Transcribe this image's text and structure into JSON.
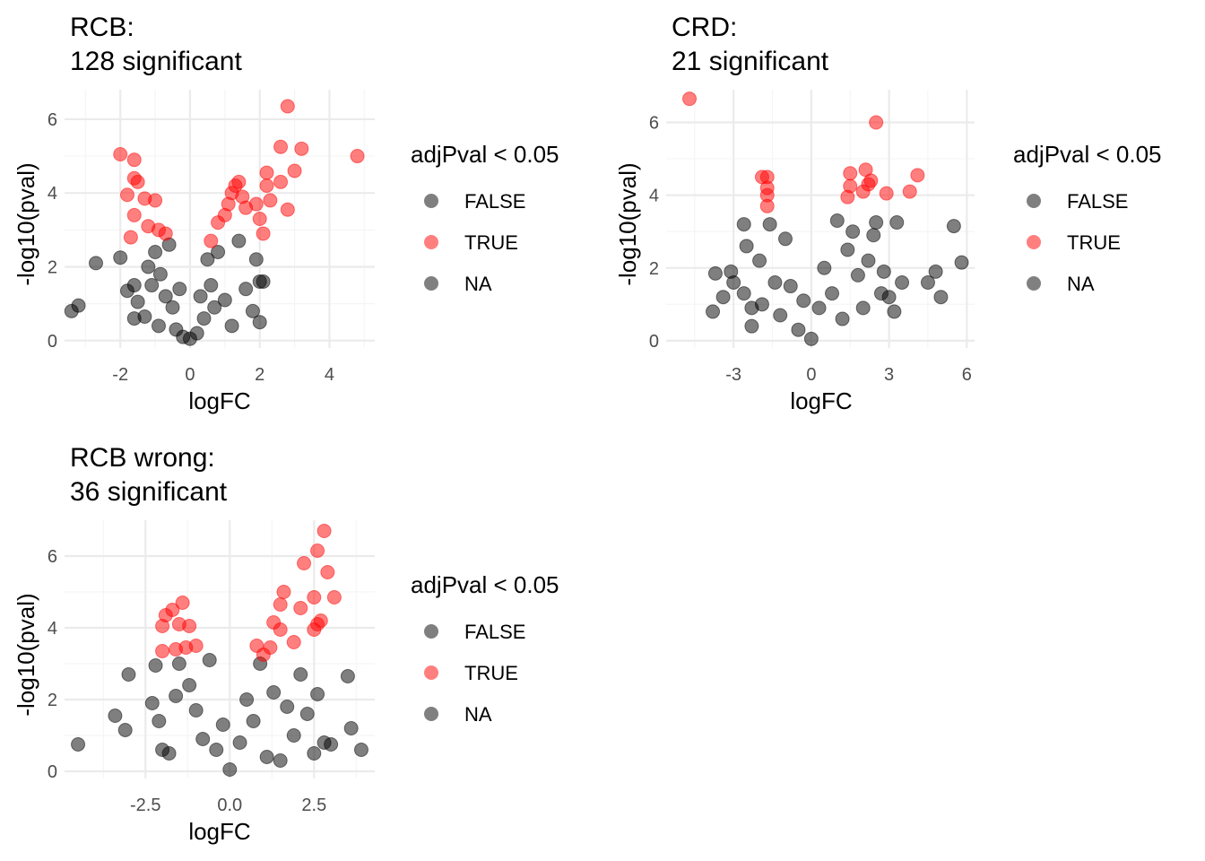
{
  "colors": {
    "false": "#000000",
    "true": "#ff0000",
    "na": "#808080",
    "grid_major": "#ebebeb",
    "grid_minor": "#f5f5f5"
  },
  "chart_data": [
    {
      "type": "scatter",
      "title": [
        "RCB:",
        "128 significant"
      ],
      "xlabel": "logFC",
      "ylabel": "-log10(pval)",
      "xlim": [
        -3.6,
        5.3
      ],
      "ylim": [
        -0.2,
        6.8
      ],
      "xticks": [
        -2,
        0,
        2,
        4
      ],
      "xtick_labels": [
        "-2",
        "0",
        "2",
        "4"
      ],
      "yticks": [
        0,
        2,
        4,
        6
      ],
      "ytick_labels": [
        "0",
        "2",
        "4",
        "6"
      ],
      "legend": {
        "title": "adjPval < 0.05",
        "entries": [
          "FALSE",
          "TRUE",
          "NA"
        ],
        "position": "right"
      },
      "grid": true,
      "series": [
        {
          "name": "FALSE",
          "points": [
            [
              -3.4,
              0.8
            ],
            [
              -3.2,
              0.95
            ],
            [
              -2.7,
              2.1
            ],
            [
              -2.0,
              2.25
            ],
            [
              -1.8,
              1.35
            ],
            [
              -1.6,
              1.5
            ],
            [
              -1.6,
              0.6
            ],
            [
              -1.5,
              1.05
            ],
            [
              -1.3,
              0.65
            ],
            [
              -1.2,
              2.0
            ],
            [
              -1.1,
              1.5
            ],
            [
              -1.0,
              2.4
            ],
            [
              -0.9,
              0.4
            ],
            [
              -0.85,
              1.8
            ],
            [
              -0.7,
              1.2
            ],
            [
              -0.6,
              2.6
            ],
            [
              -0.5,
              0.9
            ],
            [
              -0.4,
              0.3
            ],
            [
              -0.3,
              1.4
            ],
            [
              -0.2,
              0.1
            ],
            [
              0.0,
              0.05
            ],
            [
              0.2,
              0.2
            ],
            [
              0.3,
              1.2
            ],
            [
              0.4,
              0.6
            ],
            [
              0.5,
              2.2
            ],
            [
              0.6,
              1.5
            ],
            [
              0.7,
              0.9
            ],
            [
              0.8,
              2.4
            ],
            [
              1.0,
              1.1
            ],
            [
              1.2,
              0.4
            ],
            [
              1.4,
              2.7
            ],
            [
              1.6,
              1.4
            ],
            [
              1.8,
              0.8
            ],
            [
              1.9,
              2.2
            ],
            [
              2.0,
              1.6
            ],
            [
              2.0,
              0.5
            ],
            [
              2.1,
              1.6
            ]
          ]
        },
        {
          "name": "TRUE",
          "points": [
            [
              -2.0,
              5.05
            ],
            [
              -1.6,
              4.9
            ],
            [
              -1.6,
              4.4
            ],
            [
              -1.5,
              4.3
            ],
            [
              -1.8,
              3.95
            ],
            [
              -1.3,
              3.85
            ],
            [
              -1.0,
              3.8
            ],
            [
              -1.6,
              3.4
            ],
            [
              -1.2,
              3.1
            ],
            [
              -0.9,
              3.0
            ],
            [
              -1.7,
              2.8
            ],
            [
              -0.7,
              2.9
            ],
            [
              0.6,
              2.7
            ],
            [
              0.8,
              3.2
            ],
            [
              1.0,
              3.4
            ],
            [
              1.1,
              3.7
            ],
            [
              1.2,
              4.0
            ],
            [
              1.3,
              4.2
            ],
            [
              1.4,
              4.3
            ],
            [
              1.5,
              3.9
            ],
            [
              1.6,
              3.6
            ],
            [
              1.9,
              3.7
            ],
            [
              2.0,
              3.3
            ],
            [
              2.1,
              2.9
            ],
            [
              2.2,
              4.2
            ],
            [
              2.3,
              3.8
            ],
            [
              2.2,
              4.55
            ],
            [
              2.6,
              4.3
            ],
            [
              2.6,
              5.25
            ],
            [
              2.8,
              3.55
            ],
            [
              3.0,
              4.6
            ],
            [
              3.2,
              5.2
            ],
            [
              2.8,
              6.35
            ],
            [
              4.8,
              5.0
            ]
          ]
        },
        {
          "name": "NA",
          "points": []
        }
      ]
    },
    {
      "type": "scatter",
      "title": [
        "CRD:",
        "21 significant"
      ],
      "xlabel": "logFC",
      "ylabel": "-log10(pval)",
      "xlim": [
        -5.6,
        6.3
      ],
      "ylim": [
        -0.2,
        6.9
      ],
      "xticks": [
        -3,
        0,
        3,
        6
      ],
      "xtick_labels": [
        "-3",
        "0",
        "3",
        "6"
      ],
      "yticks": [
        0,
        2,
        4,
        6
      ],
      "ytick_labels": [
        "0",
        "2",
        "4",
        "6"
      ],
      "legend": {
        "title": "adjPval < 0.05",
        "entries": [
          "FALSE",
          "TRUE",
          "NA"
        ],
        "position": "right"
      },
      "grid": true,
      "series": [
        {
          "name": "FALSE",
          "points": [
            [
              -3.8,
              0.8
            ],
            [
              -3.7,
              1.85
            ],
            [
              -3.4,
              1.2
            ],
            [
              -3.1,
              1.9
            ],
            [
              -3.0,
              1.6
            ],
            [
              -2.6,
              1.3
            ],
            [
              -2.5,
              2.6
            ],
            [
              -2.6,
              3.2
            ],
            [
              -2.3,
              0.9
            ],
            [
              -2.3,
              0.4
            ],
            [
              -2.0,
              2.2
            ],
            [
              -1.9,
              1.0
            ],
            [
              -1.6,
              3.2
            ],
            [
              -1.4,
              1.6
            ],
            [
              -1.2,
              0.7
            ],
            [
              -1.0,
              2.8
            ],
            [
              -0.8,
              1.5
            ],
            [
              -0.5,
              0.3
            ],
            [
              -0.3,
              1.1
            ],
            [
              0.0,
              0.05
            ],
            [
              0.3,
              0.9
            ],
            [
              0.5,
              2.0
            ],
            [
              0.8,
              1.3
            ],
            [
              1.0,
              3.3
            ],
            [
              1.2,
              0.6
            ],
            [
              1.4,
              2.5
            ],
            [
              1.6,
              3.0
            ],
            [
              1.8,
              1.8
            ],
            [
              2.0,
              0.9
            ],
            [
              2.2,
              2.2
            ],
            [
              2.4,
              2.9
            ],
            [
              2.5,
              3.25
            ],
            [
              2.7,
              1.3
            ],
            [
              2.8,
              1.9
            ],
            [
              3.0,
              1.2
            ],
            [
              3.2,
              0.8
            ],
            [
              3.3,
              3.25
            ],
            [
              3.5,
              1.6
            ],
            [
              4.5,
              1.6
            ],
            [
              4.8,
              1.9
            ],
            [
              5.0,
              1.2
            ],
            [
              5.5,
              3.15
            ],
            [
              5.8,
              2.15
            ]
          ]
        },
        {
          "name": "TRUE",
          "points": [
            [
              -4.7,
              6.65
            ],
            [
              -1.9,
              4.5
            ],
            [
              -1.7,
              4.5
            ],
            [
              -1.7,
              4.2
            ],
            [
              -1.7,
              4.0
            ],
            [
              -1.7,
              3.7
            ],
            [
              1.5,
              4.6
            ],
            [
              1.4,
              3.95
            ],
            [
              1.5,
              4.25
            ],
            [
              2.1,
              4.7
            ],
            [
              2.0,
              4.1
            ],
            [
              2.2,
              4.3
            ],
            [
              2.3,
              4.4
            ],
            [
              2.5,
              6.0
            ],
            [
              2.9,
              4.05
            ],
            [
              3.8,
              4.1
            ],
            [
              4.1,
              4.55
            ]
          ]
        },
        {
          "name": "NA",
          "points": []
        }
      ]
    },
    {
      "type": "scatter",
      "title": [
        "RCB wrong:",
        "36 significant"
      ],
      "xlabel": "logFC",
      "ylabel": "-log10(pval)",
      "xlim": [
        -4.9,
        4.3
      ],
      "ylim": [
        -0.2,
        7.0
      ],
      "xticks": [
        -2.5,
        0,
        2.5
      ],
      "xtick_labels": [
        "-2.5",
        "0.0",
        "2.5"
      ],
      "yticks": [
        0,
        2,
        4,
        6
      ],
      "ytick_labels": [
        "0",
        "2",
        "4",
        "6"
      ],
      "legend": {
        "title": "adjPval < 0.05",
        "entries": [
          "FALSE",
          "TRUE",
          "NA"
        ],
        "position": "right"
      },
      "grid": true,
      "series": [
        {
          "name": "FALSE",
          "points": [
            [
              -4.5,
              0.75
            ],
            [
              -3.4,
              1.55
            ],
            [
              -3.1,
              1.15
            ],
            [
              -3.0,
              2.7
            ],
            [
              -2.3,
              1.9
            ],
            [
              -2.2,
              2.95
            ],
            [
              -2.1,
              1.4
            ],
            [
              -2.0,
              0.6
            ],
            [
              -1.8,
              0.5
            ],
            [
              -1.6,
              2.1
            ],
            [
              -1.5,
              3.0
            ],
            [
              -1.2,
              2.4
            ],
            [
              -1.0,
              1.7
            ],
            [
              -0.8,
              0.9
            ],
            [
              -0.6,
              3.1
            ],
            [
              -0.4,
              0.6
            ],
            [
              -0.2,
              1.3
            ],
            [
              0.0,
              0.05
            ],
            [
              0.3,
              0.8
            ],
            [
              0.5,
              2.0
            ],
            [
              0.7,
              1.4
            ],
            [
              0.9,
              3.0
            ],
            [
              1.1,
              0.4
            ],
            [
              1.3,
              2.2
            ],
            [
              1.5,
              0.3
            ],
            [
              1.7,
              1.8
            ],
            [
              1.9,
              1.0
            ],
            [
              2.1,
              2.7
            ],
            [
              2.3,
              1.6
            ],
            [
              2.5,
              0.5
            ],
            [
              2.6,
              2.15
            ],
            [
              2.8,
              0.8
            ],
            [
              3.0,
              0.75
            ],
            [
              3.5,
              2.65
            ],
            [
              3.6,
              1.2
            ],
            [
              3.9,
              0.6
            ]
          ]
        },
        {
          "name": "TRUE",
          "points": [
            [
              -2.0,
              3.35
            ],
            [
              -2.0,
              4.05
            ],
            [
              -1.9,
              4.35
            ],
            [
              -1.7,
              4.5
            ],
            [
              -1.5,
              4.1
            ],
            [
              -1.4,
              4.7
            ],
            [
              -1.3,
              3.45
            ],
            [
              -1.2,
              4.05
            ],
            [
              -1.0,
              3.5
            ],
            [
              -1.6,
              3.4
            ],
            [
              0.8,
              3.5
            ],
            [
              1.0,
              3.25
            ],
            [
              1.2,
              3.45
            ],
            [
              1.3,
              4.15
            ],
            [
              1.5,
              4.65
            ],
            [
              1.5,
              3.95
            ],
            [
              1.6,
              5.0
            ],
            [
              1.9,
              3.6
            ],
            [
              2.1,
              4.55
            ],
            [
              2.2,
              5.8
            ],
            [
              2.5,
              4.85
            ],
            [
              2.5,
              3.95
            ],
            [
              2.6,
              4.1
            ],
            [
              2.7,
              4.2
            ],
            [
              2.6,
              6.15
            ],
            [
              2.8,
              6.7
            ],
            [
              2.9,
              5.55
            ],
            [
              3.1,
              4.85
            ]
          ]
        },
        {
          "name": "NA",
          "points": []
        }
      ]
    }
  ]
}
